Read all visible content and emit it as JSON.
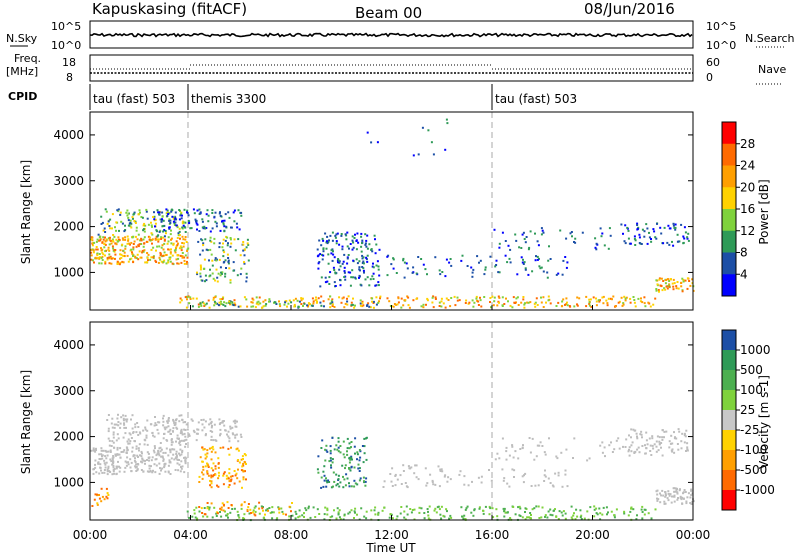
{
  "header": {
    "station": "Kapuskasing (fitACF)",
    "beam": "Beam 00",
    "date": "08/Jun/2016"
  },
  "strip_labels": {
    "nsky": "N.Sky",
    "freq_line1": "Freq.",
    "freq_line2": "[MHz]",
    "cpid": "CPID",
    "nsearch": "N.Search",
    "nave": "Nave"
  },
  "nsky_ticks": [
    "10^5",
    "10^0"
  ],
  "freq_ticks": [
    "18",
    "8"
  ],
  "nave_ticks": [
    "60",
    "0"
  ],
  "cpid_modes": [
    {
      "label": "tau (fast) 503",
      "start_h": 0,
      "end_h": 3.9
    },
    {
      "label": "themis 3300",
      "start_h": 3.9,
      "end_h": 16
    },
    {
      "label": "tau (fast) 503",
      "start_h": 16,
      "end_h": 24
    }
  ],
  "colors": {
    "frame": "#000000",
    "dash": "#aaaaaa",
    "ground_scatter": "#bdbdbd"
  },
  "chart_data": [
    {
      "type": "heatmap",
      "name": "power",
      "ylabel": "Slant Range [km]",
      "colorbar_label": "Power [dB]",
      "colorbar_ticks": [
        "28",
        "24",
        "20",
        "16",
        "12",
        "8",
        "4"
      ],
      "colorbar_colors": [
        "#ff0000",
        "#ff6a00",
        "#ff9f00",
        "#ffd200",
        "#7fd23c",
        "#2e9a57",
        "#1c4fa6",
        "#0000ff"
      ],
      "ylim": [
        180,
        4500
      ],
      "yticks": [
        "1000",
        "2000",
        "3000",
        "4000"
      ],
      "xlim": [
        0,
        24
      ],
      "xticks": [
        "00:00",
        "04:00",
        "08:00",
        "12:00",
        "16:00",
        "20:00",
        "00:00"
      ],
      "xlabel": "Time UT"
    },
    {
      "type": "heatmap",
      "name": "velocity",
      "ylabel": "Slant Range [km]",
      "colorbar_label": "Velocity [m s-1]",
      "colorbar_ticks": [
        "1000",
        "500",
        "100",
        "25",
        "-25",
        "-100",
        "-500",
        "-1000"
      ],
      "colorbar_colors": [
        "#1c4fa6",
        "#2e9a57",
        "#4caf50",
        "#7fd23c",
        "#c8c8c8",
        "#ffd200",
        "#ff9f00",
        "#ff6a00",
        "#ff0000"
      ],
      "ylim": [
        180,
        4500
      ],
      "yticks": [
        "1000",
        "2000",
        "3000",
        "4000"
      ],
      "xlim": [
        0,
        24
      ],
      "xticks": [
        "00:00",
        "04:00",
        "08:00",
        "12:00",
        "16:00",
        "20:00",
        "00:00"
      ],
      "xlabel": "Time UT"
    }
  ]
}
